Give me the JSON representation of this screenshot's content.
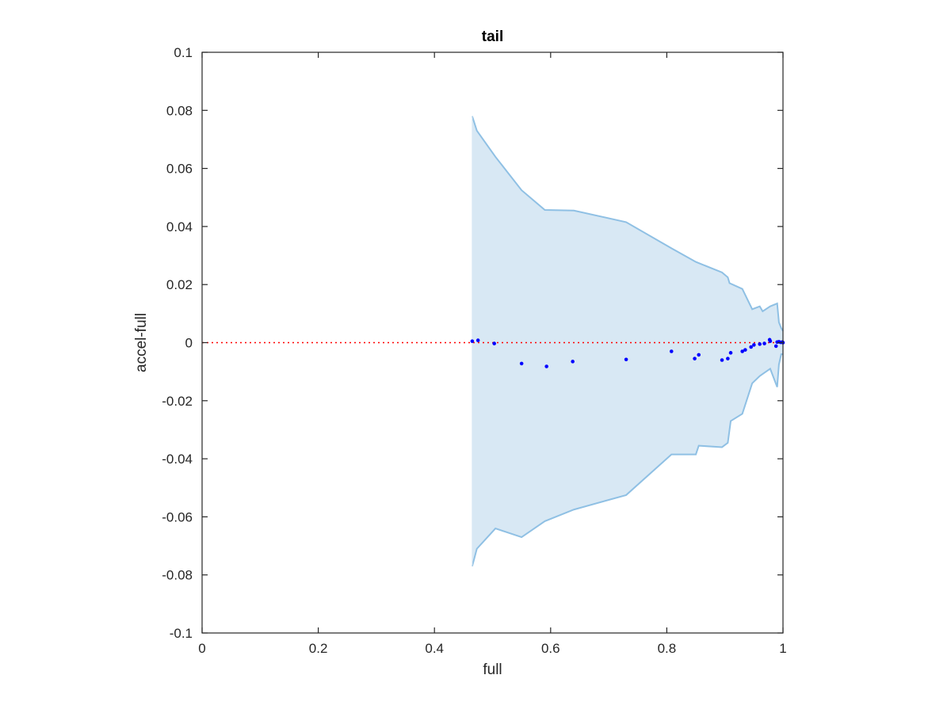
{
  "chart_data": {
    "type": "scatter",
    "title": "tail",
    "xlabel": "full",
    "ylabel": "accel-full",
    "xlim": [
      0,
      1
    ],
    "ylim": [
      -0.1,
      0.1
    ],
    "x_ticks": [
      0,
      0.2,
      0.4,
      0.6,
      0.8,
      1
    ],
    "x_tick_labels": [
      "0",
      "0.2",
      "0.4",
      "0.6",
      "0.8",
      "1"
    ],
    "y_ticks": [
      -0.1,
      -0.08,
      -0.06,
      -0.04,
      -0.02,
      0,
      0.02,
      0.04,
      0.06,
      0.08,
      0.1
    ],
    "y_tick_labels": [
      "-0.1",
      "-0.08",
      "-0.06",
      "-0.04",
      "-0.02",
      "0",
      "0.02",
      "0.04",
      "0.06",
      "0.08",
      "0.1"
    ],
    "grid": false,
    "reference_line": {
      "y": 0,
      "style": "dotted",
      "color": "#ff0000"
    },
    "band": {
      "fill_color": "#d8e8f4",
      "edge_color": "#8fc0e4",
      "upper": [
        [
          0.465,
          0.078
        ],
        [
          0.473,
          0.073
        ],
        [
          0.505,
          0.064
        ],
        [
          0.55,
          0.0525
        ],
        [
          0.59,
          0.0457
        ],
        [
          0.64,
          0.0455
        ],
        [
          0.73,
          0.0415
        ],
        [
          0.808,
          0.0325
        ],
        [
          0.85,
          0.0278
        ],
        [
          0.895,
          0.0242
        ],
        [
          0.905,
          0.0225
        ],
        [
          0.908,
          0.0205
        ],
        [
          0.93,
          0.0185
        ],
        [
          0.947,
          0.0115
        ],
        [
          0.96,
          0.0125
        ],
        [
          0.965,
          0.0108
        ],
        [
          0.978,
          0.0125
        ],
        [
          0.99,
          0.0135
        ],
        [
          0.993,
          0.007
        ],
        [
          0.997,
          0.005
        ],
        [
          1.0,
          0.004
        ]
      ],
      "lower": [
        [
          0.465,
          -0.077
        ],
        [
          0.473,
          -0.071
        ],
        [
          0.505,
          -0.064
        ],
        [
          0.55,
          -0.067
        ],
        [
          0.59,
          -0.0615
        ],
        [
          0.64,
          -0.0575
        ],
        [
          0.73,
          -0.0525
        ],
        [
          0.808,
          -0.0385
        ],
        [
          0.85,
          -0.0385
        ],
        [
          0.855,
          -0.0355
        ],
        [
          0.895,
          -0.036
        ],
        [
          0.905,
          -0.0345
        ],
        [
          0.91,
          -0.027
        ],
        [
          0.93,
          -0.0245
        ],
        [
          0.947,
          -0.014
        ],
        [
          0.96,
          -0.0115
        ],
        [
          0.965,
          -0.0108
        ],
        [
          0.978,
          -0.009
        ],
        [
          0.99,
          -0.0153
        ],
        [
          0.993,
          -0.0075
        ],
        [
          0.997,
          -0.004
        ],
        [
          1.0,
          -0.004
        ]
      ]
    },
    "series": [
      {
        "color": "#0000ff",
        "points": [
          [
            0.465,
            0.0005
          ],
          [
            0.475,
            0.0008
          ],
          [
            0.503,
            -0.0003
          ],
          [
            0.55,
            -0.0072
          ],
          [
            0.593,
            -0.0082
          ],
          [
            0.638,
            -0.0065
          ],
          [
            0.73,
            -0.0058
          ],
          [
            0.808,
            -0.003
          ],
          [
            0.848,
            -0.0055
          ],
          [
            0.855,
            -0.0042
          ],
          [
            0.895,
            -0.006
          ],
          [
            0.905,
            -0.0055
          ],
          [
            0.91,
            -0.0035
          ],
          [
            0.93,
            -0.003
          ],
          [
            0.935,
            -0.0025
          ],
          [
            0.945,
            -0.0015
          ],
          [
            0.95,
            -0.0008
          ],
          [
            0.96,
            -0.0005
          ],
          [
            0.968,
            -0.0003
          ],
          [
            0.977,
            0.001
          ],
          [
            0.978,
            0.0005
          ],
          [
            0.988,
            -0.0012
          ],
          [
            0.99,
            0.0002
          ],
          [
            0.993,
            0.0003
          ],
          [
            0.996,
            0.0001
          ],
          [
            0.999,
            0.0002
          ],
          [
            1.0,
            0.0
          ]
        ]
      }
    ]
  }
}
